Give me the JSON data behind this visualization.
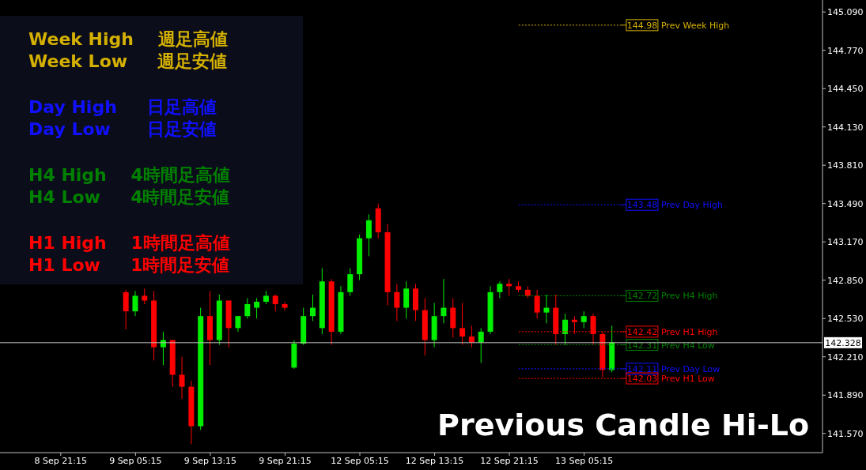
{
  "chart_data": {
    "type": "candlestick",
    "title": "Previous Candle Hi-Lo",
    "annotations": [
      "Week High    週足高値",
      "Week Low     週足安値",
      "Day High     日足高値",
      "Day Low      日足安値",
      "H4 High    4時間足高値",
      "H4 Low     4時間足安値",
      "H1 High    1時間足高値",
      "H1 Low     1時間足安値"
    ],
    "categories": [
      null,
      null,
      null,
      null,
      null,
      null,
      "8 Sep 21:15",
      null,
      null,
      null,
      null,
      null,
      null,
      null,
      "9 Sep 05:15",
      null,
      null,
      null,
      null,
      null,
      null,
      null,
      "9 Sep 13:15",
      null,
      null,
      null,
      null,
      null,
      null,
      null,
      "9 Sep 21:15",
      null,
      null,
      null,
      null,
      null,
      null,
      null,
      "12 Sep 05:15",
      null,
      null,
      null,
      null,
      null,
      null,
      null,
      "12 Sep 13:15",
      null,
      null,
      null,
      null,
      null,
      null,
      null,
      "12 Sep 21:15",
      null,
      null,
      null,
      null,
      null,
      null,
      null,
      "13 Sep 05:15",
      null,
      null,
      null,
      null,
      null,
      null,
      null,
      null,
      null,
      null,
      null,
      null,
      null,
      null,
      null,
      null,
      null,
      null,
      null,
      null,
      null,
      null,
      null,
      null,
      null
    ],
    "ohlc": [
      null,
      null,
      null,
      null,
      null,
      null,
      null,
      null,
      null,
      null,
      null,
      null,
      null,
      [
        142.75,
        142.77,
        142.44,
        142.59
      ],
      [
        142.59,
        142.76,
        142.55,
        142.72
      ],
      [
        142.72,
        142.78,
        142.65,
        142.68
      ],
      [
        142.68,
        142.76,
        142.18,
        142.29
      ],
      [
        142.29,
        142.42,
        142.14,
        142.35
      ],
      [
        142.35,
        142.35,
        141.96,
        142.06
      ],
      [
        142.06,
        142.21,
        141.86,
        141.96
      ],
      [
        141.96,
        142.01,
        141.48,
        141.63
      ],
      [
        141.63,
        142.62,
        141.6,
        142.55
      ],
      [
        142.55,
        142.76,
        142.14,
        142.35
      ],
      [
        142.35,
        142.73,
        142.31,
        142.68
      ],
      [
        142.68,
        142.68,
        142.29,
        142.45
      ],
      [
        142.45,
        142.55,
        142.42,
        142.55
      ],
      [
        142.55,
        142.7,
        142.53,
        142.65
      ],
      [
        142.62,
        142.7,
        142.53,
        142.67
      ],
      [
        142.67,
        142.76,
        142.65,
        142.72
      ],
      [
        142.72,
        142.73,
        142.59,
        142.65
      ],
      [
        142.65,
        142.67,
        142.6,
        142.62
      ],
      [
        142.12,
        142.35,
        142.11,
        142.32
      ],
      [
        142.32,
        142.62,
        142.31,
        142.55
      ],
      [
        142.55,
        142.73,
        142.51,
        142.62
      ],
      [
        142.45,
        142.95,
        142.4,
        142.84
      ],
      [
        142.84,
        142.86,
        142.31,
        142.42
      ],
      [
        142.42,
        142.8,
        142.4,
        142.75
      ],
      [
        142.75,
        142.95,
        142.72,
        142.9
      ],
      [
        142.9,
        143.23,
        142.85,
        143.2
      ],
      [
        143.2,
        143.4,
        143.05,
        143.35
      ],
      [
        143.45,
        143.49,
        143.2,
        143.25
      ],
      [
        143.25,
        143.32,
        142.64,
        142.75
      ],
      [
        142.75,
        142.82,
        142.51,
        142.62
      ],
      [
        142.62,
        142.84,
        142.53,
        142.78
      ],
      [
        142.78,
        142.82,
        142.51,
        142.6
      ],
      [
        142.6,
        142.7,
        142.22,
        142.35
      ],
      [
        142.35,
        142.66,
        142.29,
        142.55
      ],
      [
        142.55,
        142.86,
        142.49,
        142.62
      ],
      [
        142.62,
        142.7,
        142.37,
        142.45
      ],
      [
        142.45,
        142.66,
        142.31,
        142.38
      ],
      [
        142.38,
        142.47,
        142.29,
        142.33
      ],
      [
        142.33,
        142.45,
        142.16,
        142.42
      ],
      [
        142.42,
        142.8,
        142.4,
        142.75
      ],
      [
        142.75,
        142.84,
        142.7,
        142.82
      ],
      [
        142.82,
        142.86,
        142.72,
        142.8
      ],
      [
        142.8,
        142.84,
        142.75,
        142.77
      ],
      [
        142.77,
        142.8,
        142.7,
        142.72
      ],
      [
        142.72,
        142.77,
        142.53,
        142.58
      ],
      [
        142.58,
        142.73,
        142.49,
        142.62
      ],
      [
        142.62,
        142.73,
        142.31,
        142.4
      ],
      [
        142.4,
        142.57,
        142.31,
        142.52
      ],
      [
        142.52,
        142.55,
        142.4,
        142.5
      ],
      [
        142.5,
        142.59,
        142.45,
        142.55
      ],
      [
        142.55,
        142.57,
        142.31,
        142.4
      ],
      [
        142.4,
        142.42,
        142.04,
        142.1
      ],
      [
        142.1,
        142.47,
        142.08,
        142.33
      ],
      null,
      null,
      null,
      null,
      null,
      null,
      null,
      null,
      null,
      null,
      null,
      null,
      null,
      null,
      null,
      null,
      null,
      null,
      null,
      null,
      null,
      null
    ],
    "colors": [
      null,
      null,
      null,
      null,
      null,
      null,
      null,
      null,
      null,
      null,
      null,
      null,
      null,
      "#ff0000",
      "#00ee00",
      "#ff0000",
      "#ff0000",
      "#00ee00",
      "#ff0000",
      "#ff0000",
      "#ff0000",
      "#00ee00",
      "#ff0000",
      "#00ee00",
      "#ff0000",
      "#00ee00",
      "#00ee00",
      "#00ee00",
      "#00ee00",
      "#ff0000",
      "#ff0000",
      "#00ee00",
      "#00ee00",
      "#00ee00",
      "#00ee00",
      "#ff0000",
      "#00ee00",
      "#00ee00",
      "#00ee00",
      "#00ee00",
      "#ff0000",
      "#ff0000",
      "#ff0000",
      "#00ee00",
      "#ff0000",
      "#ff0000",
      "#00ee00",
      "#00ee00",
      "#ff0000",
      "#ff0000",
      "#ff0000",
      "#00ee00",
      "#00ee00",
      "#00ee00",
      "#ff0000",
      "#ff0000",
      "#ff0000",
      "#ff0000",
      "#00ee00",
      "#ff0000",
      "#00ee00",
      "#ff0000",
      "#00ee00",
      "#ff0000",
      "#ff0000",
      "#00ee00",
      null,
      null,
      null,
      null,
      null,
      null,
      null,
      null,
      null,
      null,
      null,
      null,
      null,
      null,
      null,
      null,
      null,
      null,
      null,
      null,
      null,
      null
    ],
    "ylim": [
      141.41,
      145.19
    ],
    "yticks": [
      {
        "value": 141.57,
        "label": "141.570"
      },
      {
        "value": 141.89,
        "label": "141.890"
      },
      {
        "value": 142.21,
        "label": "142.210"
      },
      {
        "value": 142.53,
        "label": "142.530"
      },
      {
        "value": 142.85,
        "label": "142.850"
      },
      {
        "value": 143.17,
        "label": "143.170"
      },
      {
        "value": 143.49,
        "label": "143.490"
      },
      {
        "value": 143.81,
        "label": "143.810"
      },
      {
        "value": 144.13,
        "label": "144.130"
      },
      {
        "value": 144.45,
        "label": "144.450"
      },
      {
        "value": 144.77,
        "label": "144.770"
      },
      {
        "value": 145.09,
        "label": "145.090"
      }
    ],
    "ref_lines": [
      {
        "axis": "y",
        "value": 144.98,
        "label": "144.98 Prev Week High",
        "color": "#d4b000",
        "line_style": "dotted"
      },
      {
        "axis": "y",
        "value": 143.48,
        "label": "143.48 Prev Day High",
        "color": "#1010ff",
        "line_style": "dotted"
      },
      {
        "axis": "y",
        "value": 142.72,
        "label": "142.72 Prev H4 High",
        "color": "#008000",
        "line_style": "dotted"
      },
      {
        "axis": "y",
        "value": 142.42,
        "label": "142.42 Prev H1 High",
        "color": "#ff0000",
        "line_style": "dotted"
      },
      {
        "axis": "y",
        "value": 142.31,
        "label": "142.31 Prev H4 Low",
        "color": "#008000",
        "line_style": "dotted"
      },
      {
        "axis": "y",
        "value": 142.11,
        "label": "142.11 Prev Day Low",
        "color": "#1010ff",
        "line_style": "dotted"
      },
      {
        "axis": "y",
        "value": 142.03,
        "label": "142.03 Prev H1 Low",
        "color": "#ff0000",
        "line_style": "dotted"
      },
      {
        "axis": "y",
        "value": 142.328,
        "label": "142.328",
        "color": "#c0c0c0",
        "line_style": "solid"
      }
    ]
  }
}
